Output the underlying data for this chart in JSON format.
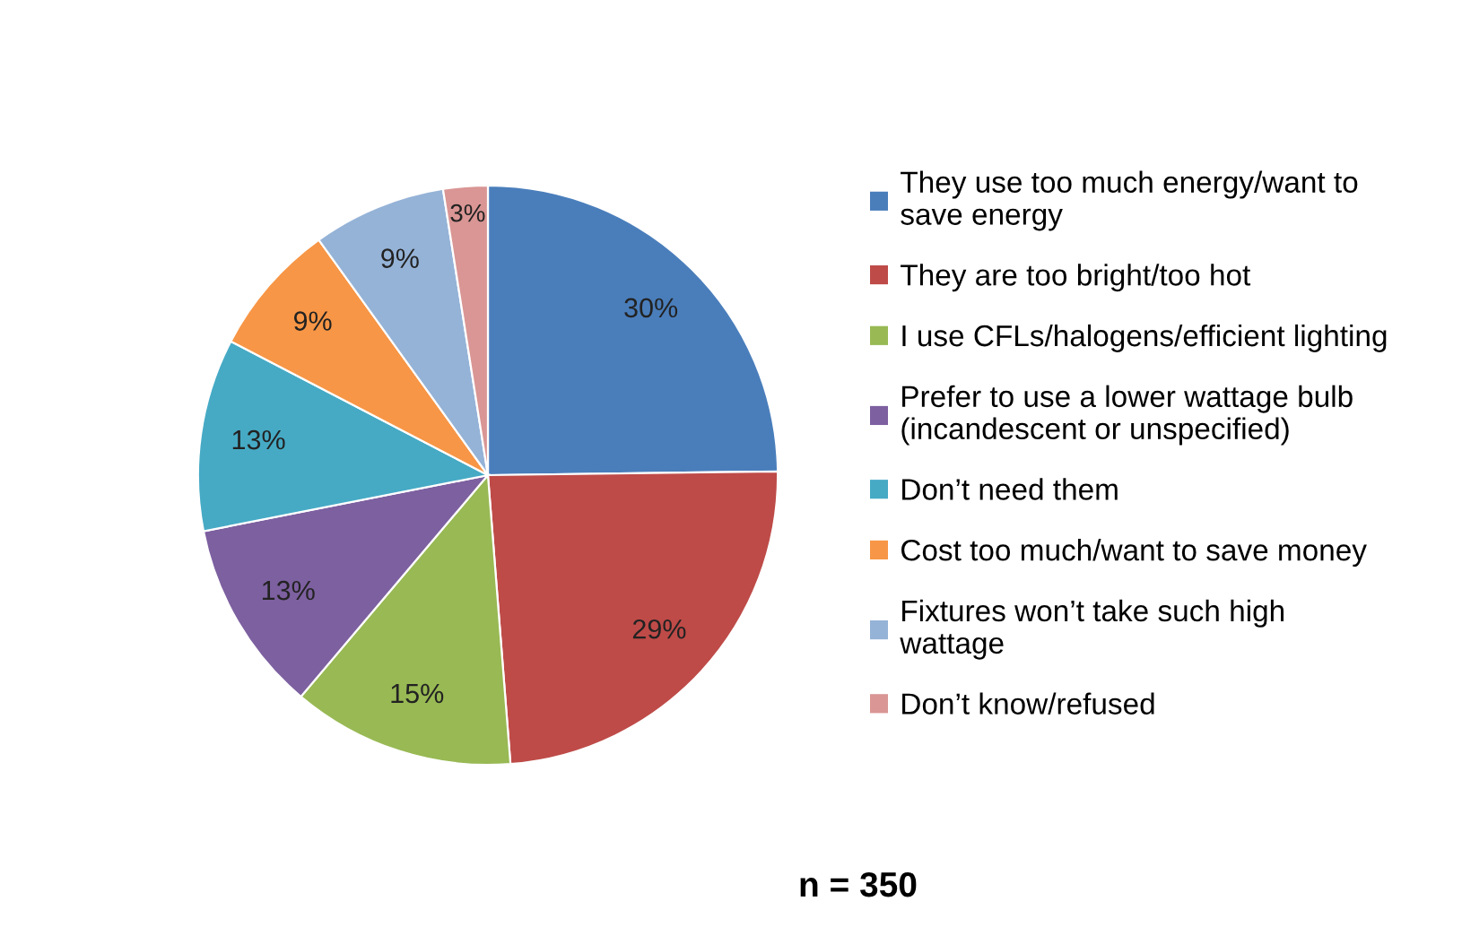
{
  "chart_data": {
    "type": "pie",
    "categories": [
      "They use too much energy/want to\nsave energy",
      "They are too bright/too hot",
      "I use CFLs/halogens/efficient lighting",
      "Prefer to use a lower wattage bulb\n(incandescent or unspecified)",
      "Don’t need them",
      "Cost too much/want to save money",
      "Fixtures won’t take such high\nwattage",
      "Don’t know/refused"
    ],
    "values": [
      30,
      29,
      15,
      13,
      13,
      9,
      9,
      3
    ],
    "value_labels": [
      "30%",
      "29%",
      "15%",
      "13%",
      "13%",
      "9%",
      "9%",
      "3%"
    ],
    "colors": [
      "#4a7ebb",
      "#be4b48",
      "#98b954",
      "#7d60a0",
      "#46aac5",
      "#f79646",
      "#95b3d7",
      "#d99694"
    ],
    "legend": "right",
    "annotations": [
      "n = 350"
    ]
  }
}
